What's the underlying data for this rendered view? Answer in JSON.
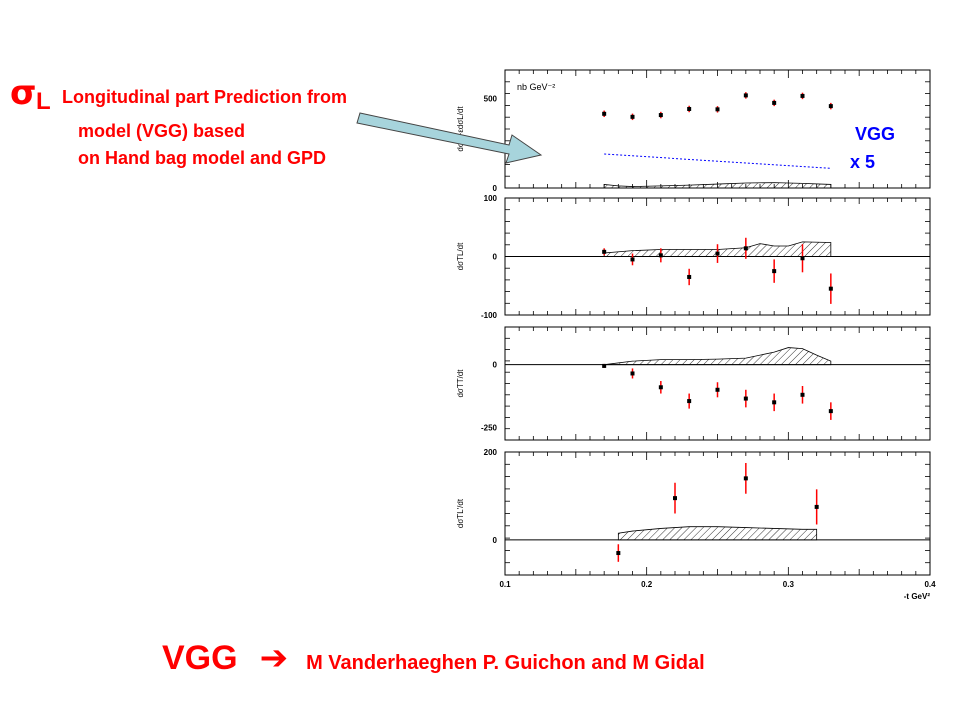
{
  "annotation": {
    "symbol": "σ",
    "subscript": "L",
    "line1": "Longitudinal part Prediction from",
    "line2": "model (VGG) based",
    "line3": "on Hand bag model and GPD",
    "vgg": "VGG",
    "scale": "x  5"
  },
  "footer": {
    "vgg": "VGG",
    "arrow": "➔",
    "authors": "M Vanderhaeghen P. Guichon and M Gidal"
  },
  "colors": {
    "text": "#ff0000",
    "vgg_label": "#0000ff",
    "arrow_fill": "#a7d4dc",
    "error_bar": "#ff0000",
    "vgg_curve": "#0000ff"
  },
  "chart_data": [
    {
      "type": "scatter",
      "ylabel": "dσT+εdσL/dt",
      "unit_note": "nb GeV⁻²",
      "yticks": [
        0,
        500
      ],
      "ylim": [
        0,
        660
      ],
      "x": [
        0.17,
        0.19,
        0.21,
        0.23,
        0.25,
        0.27,
        0.29,
        0.31,
        0.33
      ],
      "y": [
        415,
        398,
        408,
        442,
        440,
        518,
        476,
        515,
        458
      ],
      "yerr": [
        18,
        18,
        18,
        18,
        18,
        18,
        18,
        18,
        18
      ],
      "model": {
        "name": "VGG",
        "x": [
          0.17,
          0.33
        ],
        "y": [
          190,
          110
        ]
      },
      "band": {
        "x": [
          0.17,
          0.18,
          0.19,
          0.21,
          0.23,
          0.25,
          0.27,
          0.29,
          0.31,
          0.33
        ],
        "y": [
          20,
          12,
          8,
          12,
          16,
          22,
          28,
          30,
          26,
          20
        ]
      }
    },
    {
      "type": "scatter",
      "ylabel": "dσTL/dt",
      "yticks": [
        -100,
        0,
        100
      ],
      "ylim": [
        -100,
        100
      ],
      "x": [
        0.17,
        0.19,
        0.21,
        0.23,
        0.25,
        0.27,
        0.29,
        0.31,
        0.33
      ],
      "y": [
        8,
        -5,
        2,
        -35,
        5,
        14,
        -25,
        -3,
        -55
      ],
      "yerr": [
        6,
        10,
        12,
        14,
        16,
        18,
        20,
        24,
        26
      ],
      "band": {
        "x": [
          0.17,
          0.19,
          0.21,
          0.23,
          0.25,
          0.27,
          0.28,
          0.29,
          0.3,
          0.31,
          0.33
        ],
        "y": [
          6,
          10,
          12,
          12,
          12,
          15,
          22,
          18,
          18,
          25,
          24
        ]
      }
    },
    {
      "type": "scatter",
      "ylabel": "dσTT/dt",
      "yticks": [
        -250,
        0
      ],
      "ylim": [
        -300,
        150
      ],
      "x": [
        0.17,
        0.19,
        0.21,
        0.23,
        0.25,
        0.27,
        0.29,
        0.31,
        0.33
      ],
      "y": [
        -5,
        -35,
        -90,
        -145,
        -100,
        -135,
        -150,
        -120,
        -185
      ],
      "yerr": [
        8,
        20,
        25,
        30,
        30,
        35,
        35,
        35,
        35
      ],
      "band": {
        "x": [
          0.17,
          0.19,
          0.21,
          0.23,
          0.25,
          0.27,
          0.29,
          0.3,
          0.31,
          0.32,
          0.33
        ],
        "y": [
          0,
          14,
          20,
          20,
          22,
          26,
          50,
          68,
          64,
          38,
          14
        ]
      }
    },
    {
      "type": "scatter",
      "ylabel": "dσTL'/dt",
      "yticks": [
        0,
        200
      ],
      "ylim": [
        -80,
        200
      ],
      "xticks": [
        0.1,
        0.2,
        0.3,
        0.4
      ],
      "xlabel": "-t  GeV²",
      "x": [
        0.18,
        0.22,
        0.27,
        0.32
      ],
      "y": [
        -30,
        95,
        140,
        75
      ],
      "yerr": [
        20,
        35,
        35,
        40
      ],
      "band": {
        "x": [
          0.18,
          0.19,
          0.21,
          0.23,
          0.25,
          0.27,
          0.29,
          0.31,
          0.32
        ],
        "y": [
          15,
          20,
          26,
          30,
          30,
          28,
          26,
          24,
          24
        ]
      }
    }
  ]
}
